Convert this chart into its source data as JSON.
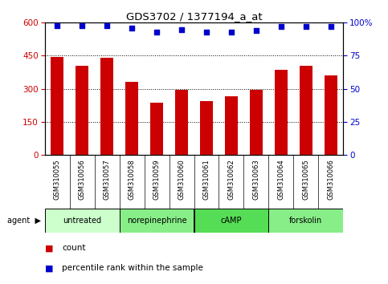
{
  "title": "GDS3702 / 1377194_a_at",
  "samples": [
    "GSM310055",
    "GSM310056",
    "GSM310057",
    "GSM310058",
    "GSM310059",
    "GSM310060",
    "GSM310061",
    "GSM310062",
    "GSM310063",
    "GSM310064",
    "GSM310065",
    "GSM310066"
  ],
  "counts": [
    445,
    405,
    440,
    330,
    235,
    295,
    245,
    265,
    295,
    385,
    405,
    360
  ],
  "percentiles": [
    98,
    98,
    98,
    96,
    93,
    95,
    93,
    93,
    94,
    97,
    97,
    97
  ],
  "ylim_left": [
    0,
    600
  ],
  "ylim_right": [
    0,
    100
  ],
  "yticks_left": [
    0,
    150,
    300,
    450,
    600
  ],
  "yticks_right": [
    0,
    25,
    50,
    75,
    100
  ],
  "bar_color": "#cc0000",
  "dot_color": "#0000cc",
  "agents": [
    {
      "label": "untreated",
      "start": 0,
      "end": 3,
      "color": "#ccffcc"
    },
    {
      "label": "norepinephrine",
      "start": 3,
      "end": 6,
      "color": "#88ee88"
    },
    {
      "label": "cAMP",
      "start": 6,
      "end": 9,
      "color": "#55dd55"
    },
    {
      "label": "forskolin",
      "start": 9,
      "end": 12,
      "color": "#88ee88"
    }
  ],
  "legend_count_label": "count",
  "legend_pct_label": "percentile rank within the sample",
  "bar_width": 0.5,
  "tick_label_color_left": "#cc0000",
  "tick_label_color_right": "#0000cc",
  "background_color": "#ffffff",
  "xticklabel_bg": "#cccccc"
}
